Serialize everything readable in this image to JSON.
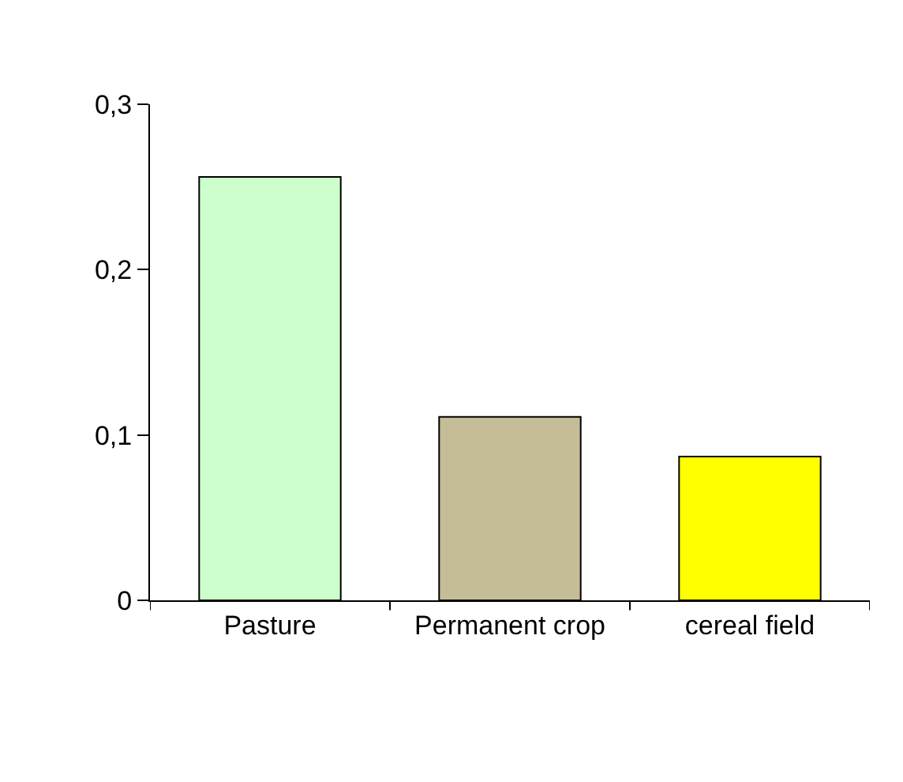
{
  "chart_data": {
    "type": "bar",
    "categories": [
      "Pasture",
      "Permanent crop",
      "cereal field"
    ],
    "values": [
      0.256,
      0.111,
      0.087
    ],
    "colors": [
      "#ccffcc",
      "#c4bd97",
      "#ffff00"
    ],
    "ylim": [
      0,
      0.3
    ],
    "yticks": [
      0,
      {
        "value": 0.1,
        "label": "0,1"
      },
      {
        "value": 0.2,
        "label": "0,2"
      },
      {
        "value": 0.3,
        "label": "0,3"
      }
    ]
  }
}
